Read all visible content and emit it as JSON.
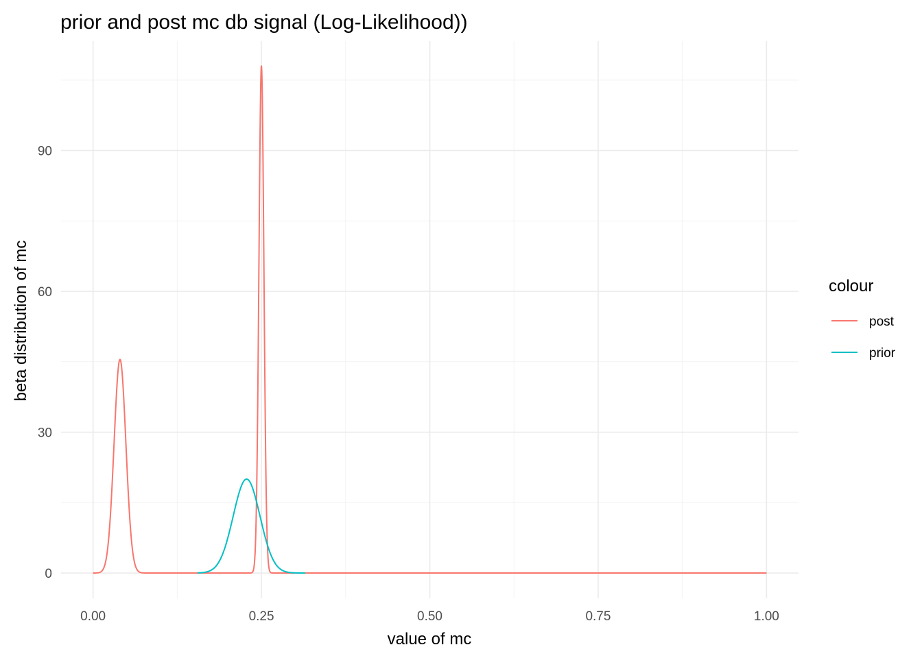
{
  "chart_data": {
    "type": "line",
    "title": "prior and post mc db signal (Log-Likelihood))",
    "xlabel": "value of mc",
    "ylabel": "beta distribution of mc",
    "xlim": [
      -0.0475,
      1.0475
    ],
    "ylim": [
      -5.4,
      113.3
    ],
    "x_ticks": [
      0.0,
      0.25,
      0.5,
      0.75,
      1.0
    ],
    "x_tick_labels": [
      "0.00",
      "0.25",
      "0.50",
      "0.75",
      "1.00"
    ],
    "y_ticks": [
      0,
      30,
      60,
      90
    ],
    "y_tick_labels": [
      "0",
      "30",
      "60",
      "90"
    ],
    "grid": true,
    "legend": {
      "title": "colour",
      "placement": "right"
    },
    "series": [
      {
        "name": "post",
        "color": "#F8766D",
        "x_range": [
          0.0,
          1.0
        ],
        "components": [
          {
            "peak_x": 0.04,
            "peak_y": 45.5,
            "sd": 0.0088
          },
          {
            "peak_x": 0.25,
            "peak_y": 108,
            "sd": 0.0037
          }
        ]
      },
      {
        "name": "prior",
        "color": "#00BFC4",
        "x_range": [
          0.155,
          0.315
        ],
        "components": [
          {
            "peak_x": 0.228,
            "peak_y": 20,
            "sd": 0.0199
          }
        ]
      }
    ]
  }
}
